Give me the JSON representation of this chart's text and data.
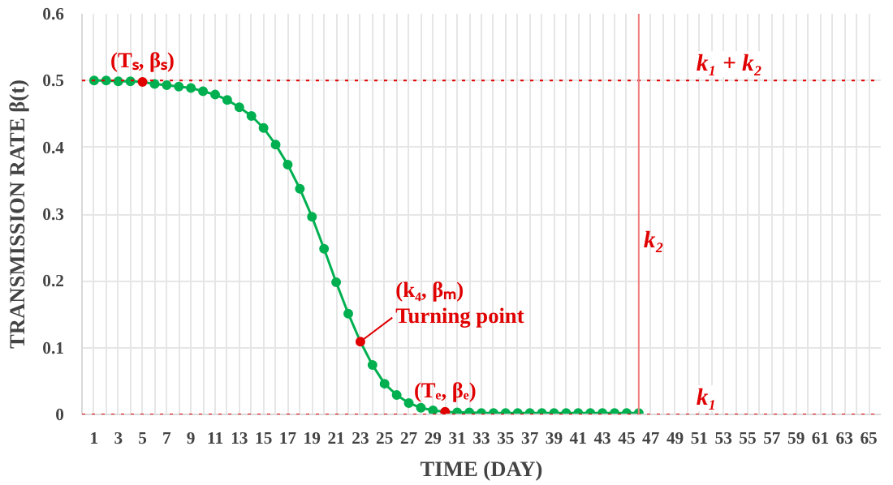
{
  "chart_data": {
    "type": "line",
    "xlabel": "TIME (DAY)",
    "ylabel": "TRANSMISSION RATE β(t)",
    "series": [
      {
        "color": "#00b050",
        "colors": [
          "#00b050",
          "#00b050",
          "#00b050",
          "#00b050",
          "#e00000",
          "#00b050",
          "#00b050",
          "#00b050",
          "#00b050",
          "#00b050",
          "#00b050",
          "#00b050",
          "#00b050",
          "#00b050",
          "#00b050",
          "#00b050",
          "#00b050",
          "#00b050",
          "#00b050",
          "#00b050",
          "#00b050",
          "#00b050",
          "#e00000",
          "#00b050",
          "#00b050",
          "#00b050",
          "#00b050",
          "#00b050",
          "#00b050",
          "#e00000",
          "#00b050",
          "#00b050",
          "#00b050",
          "#00b050",
          "#00b050",
          "#00b050",
          "#00b050",
          "#00b050",
          "#00b050",
          "#00b050",
          "#00b050",
          "#00b050",
          "#00b050",
          "#00b050",
          "#00b050",
          "#00b050"
        ],
        "x": [
          1,
          2,
          3,
          4,
          5,
          6,
          7,
          8,
          9,
          10,
          11,
          12,
          13,
          14,
          15,
          16,
          17,
          18,
          19,
          20,
          21,
          22,
          23,
          24,
          25,
          26,
          27,
          28,
          29,
          30,
          31,
          32,
          33,
          34,
          35,
          36,
          37,
          38,
          39,
          40,
          41,
          42,
          43,
          44,
          45,
          46
        ],
        "values": [
          0.5,
          0.5,
          0.499,
          0.499,
          0.498,
          0.495,
          0.493,
          0.491,
          0.489,
          0.484,
          0.479,
          0.471,
          0.46,
          0.447,
          0.429,
          0.404,
          0.374,
          0.338,
          0.296,
          0.248,
          0.198,
          0.151,
          0.109,
          0.074,
          0.046,
          0.029,
          0.017,
          0.01,
          0.006,
          0.004,
          0.003,
          0.003,
          0.002,
          0.002,
          0.002,
          0.002,
          0.002,
          0.002,
          0.002,
          0.002,
          0.002,
          0.002,
          0.002,
          0.002,
          0.002,
          0.002
        ]
      }
    ],
    "marker": "circle",
    "line_style": "solid",
    "grid": true,
    "xlim": [
      0,
      66
    ],
    "xticks": [
      1,
      {
        "value": 2,
        "label": null
      },
      3,
      {
        "value": 4,
        "label": null
      },
      5,
      {
        "value": 6,
        "label": null
      },
      7,
      {
        "value": 8,
        "label": null
      },
      9,
      {
        "value": 10,
        "label": null
      },
      11,
      {
        "value": 12,
        "label": null
      },
      13,
      {
        "value": 14,
        "label": null
      },
      15,
      {
        "value": 16,
        "label": null
      },
      17,
      {
        "value": 18,
        "label": null
      },
      19,
      {
        "value": 20,
        "label": null
      },
      21,
      {
        "value": 22,
        "label": null
      },
      23,
      {
        "value": 24,
        "label": null
      },
      25,
      {
        "value": 26,
        "label": null
      },
      27,
      {
        "value": 28,
        "label": null
      },
      29,
      {
        "value": 30,
        "label": null
      },
      31,
      {
        "value": 32,
        "label": null
      },
      33,
      {
        "value": 34,
        "label": null
      },
      35,
      {
        "value": 36,
        "label": null
      },
      37,
      {
        "value": 38,
        "label": null
      },
      39,
      {
        "value": 40,
        "label": null
      },
      41,
      {
        "value": 42,
        "label": null
      },
      43,
      {
        "value": 44,
        "label": null
      },
      45,
      {
        "value": 46,
        "label": null
      },
      47,
      {
        "value": 48,
        "label": null
      },
      49,
      {
        "value": 50,
        "label": null
      },
      51,
      {
        "value": 52,
        "label": null
      },
      53,
      {
        "value": 54,
        "label": null
      },
      55,
      {
        "value": 56,
        "label": null
      },
      57,
      {
        "value": 58,
        "label": null
      },
      59,
      {
        "value": 60,
        "label": null
      },
      61,
      {
        "value": 62,
        "label": null
      },
      63,
      {
        "value": 64,
        "label": null
      },
      65
    ],
    "ylim": [
      0,
      0.6
    ],
    "yticks": [
      0,
      0.1,
      0.2,
      0.3,
      0.4,
      0.5,
      0.6
    ],
    "ref_lines": [
      {
        "axis": "y",
        "value": 0.5,
        "label": "k₁ + k₂",
        "color": "#e00000",
        "line_style": "dotted"
      },
      {
        "axis": "y",
        "value": 0,
        "label": "k₁",
        "color": "#e00000",
        "line_style": "dotted"
      },
      {
        "axis": "x",
        "value": 46,
        "label": "k₂",
        "color": "#f08080",
        "line_style": "solid"
      }
    ],
    "annotations": [
      {
        "text": "(Tₛ, βₛ)",
        "x": 5,
        "y": 0.498
      },
      {
        "text": "Turning point",
        "x": 23,
        "y": 0.109
      },
      {
        "text": "(k₄, βₘ)",
        "x": 23,
        "y": 0.109
      },
      {
        "text": "(Tₑ, βₑ)",
        "x": 30,
        "y": 0.004
      }
    ]
  }
}
